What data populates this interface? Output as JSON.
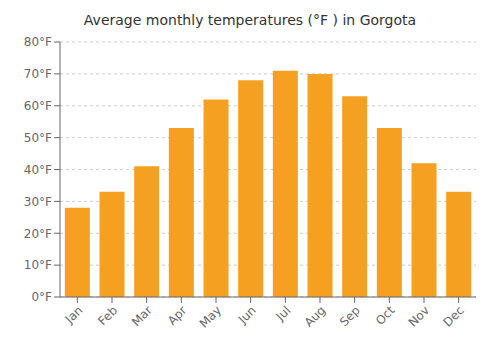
{
  "chart_data": {
    "type": "bar",
    "title": "Average monthly temperatures (°F ) in Gorgota",
    "categories": [
      "Jan",
      "Feb",
      "Mar",
      "Apr",
      "May",
      "Jun",
      "Jul",
      "Aug",
      "Sep",
      "Oct",
      "Nov",
      "Dec"
    ],
    "values": [
      28,
      33,
      41,
      53,
      62,
      68,
      71,
      70,
      63,
      53,
      42,
      33
    ],
    "color": "#F5A020",
    "ylim": [
      0,
      80
    ],
    "yticks": [
      {
        "value": 0,
        "label": "0°F"
      },
      {
        "value": 10,
        "label": "10°F"
      },
      {
        "value": 20,
        "label": "20°F"
      },
      {
        "value": 30,
        "label": "30°F"
      },
      {
        "value": 40,
        "label": "40°F"
      },
      {
        "value": 50,
        "label": "50°F"
      },
      {
        "value": 60,
        "label": "60°F"
      },
      {
        "value": 70,
        "label": "70°F"
      },
      {
        "value": 80,
        "label": "80°F"
      }
    ],
    "grid": true
  }
}
